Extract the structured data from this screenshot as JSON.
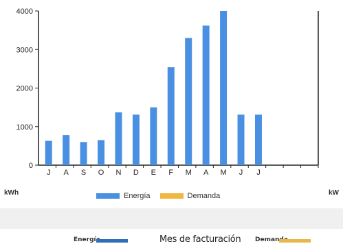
{
  "chart_data": {
    "type": "bar",
    "categories": [
      "J",
      "A",
      "S",
      "O",
      "N",
      "D",
      "E",
      "F",
      "M",
      "A",
      "M",
      "J",
      "J",
      "",
      "",
      ""
    ],
    "series": [
      {
        "name": "Energía",
        "values": [
          630,
          780,
          600,
          650,
          1370,
          1310,
          1500,
          2540,
          3300,
          3620,
          4000,
          1310,
          1310,
          null,
          null,
          null
        ],
        "color": "#4a90e2"
      },
      {
        "name": "Demanda",
        "values": [
          null,
          null,
          null,
          null,
          null,
          null,
          null,
          null,
          null,
          null,
          null,
          null,
          null,
          null,
          null,
          null
        ],
        "color": "#f0b840"
      }
    ],
    "y_ticks": [
      "0",
      "1000",
      "2000",
      "3000",
      "4000"
    ],
    "ylim": [
      0,
      4000
    ],
    "ylabel_left": "kWh",
    "ylabel_right": "kW",
    "legend": [
      "Energía",
      "Demanda"
    ],
    "legend_placement": "bottom",
    "grid": false
  },
  "footer": {
    "energia_label": "Energía",
    "title": "Mes de facturación",
    "demanda_label": "Demanda",
    "energia_color": "#2e6fb8",
    "demanda_color": "#e8b84a"
  }
}
